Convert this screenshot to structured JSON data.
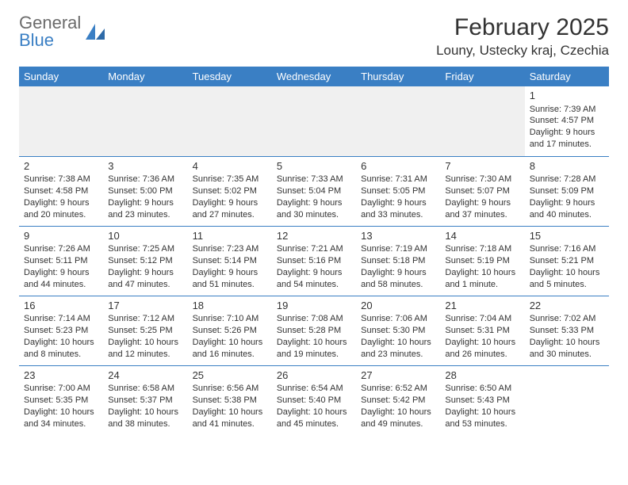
{
  "logo": {
    "word1": "General",
    "word2": "Blue"
  },
  "header": {
    "month_title": "February 2025",
    "location": "Louny, Ustecky kraj, Czechia"
  },
  "colors": {
    "accent": "#3a7fc4",
    "text": "#333333",
    "logo_gray": "#6b6b6b",
    "blank_bg": "#f0f0f0",
    "background": "#ffffff"
  },
  "weekdays": [
    "Sunday",
    "Monday",
    "Tuesday",
    "Wednesday",
    "Thursday",
    "Friday",
    "Saturday"
  ],
  "weeks": [
    [
      null,
      null,
      null,
      null,
      null,
      null,
      {
        "n": "1",
        "sr": "Sunrise: 7:39 AM",
        "ss": "Sunset: 4:57 PM",
        "d1": "Daylight: 9 hours",
        "d2": "and 17 minutes."
      }
    ],
    [
      {
        "n": "2",
        "sr": "Sunrise: 7:38 AM",
        "ss": "Sunset: 4:58 PM",
        "d1": "Daylight: 9 hours",
        "d2": "and 20 minutes."
      },
      {
        "n": "3",
        "sr": "Sunrise: 7:36 AM",
        "ss": "Sunset: 5:00 PM",
        "d1": "Daylight: 9 hours",
        "d2": "and 23 minutes."
      },
      {
        "n": "4",
        "sr": "Sunrise: 7:35 AM",
        "ss": "Sunset: 5:02 PM",
        "d1": "Daylight: 9 hours",
        "d2": "and 27 minutes."
      },
      {
        "n": "5",
        "sr": "Sunrise: 7:33 AM",
        "ss": "Sunset: 5:04 PM",
        "d1": "Daylight: 9 hours",
        "d2": "and 30 minutes."
      },
      {
        "n": "6",
        "sr": "Sunrise: 7:31 AM",
        "ss": "Sunset: 5:05 PM",
        "d1": "Daylight: 9 hours",
        "d2": "and 33 minutes."
      },
      {
        "n": "7",
        "sr": "Sunrise: 7:30 AM",
        "ss": "Sunset: 5:07 PM",
        "d1": "Daylight: 9 hours",
        "d2": "and 37 minutes."
      },
      {
        "n": "8",
        "sr": "Sunrise: 7:28 AM",
        "ss": "Sunset: 5:09 PM",
        "d1": "Daylight: 9 hours",
        "d2": "and 40 minutes."
      }
    ],
    [
      {
        "n": "9",
        "sr": "Sunrise: 7:26 AM",
        "ss": "Sunset: 5:11 PM",
        "d1": "Daylight: 9 hours",
        "d2": "and 44 minutes."
      },
      {
        "n": "10",
        "sr": "Sunrise: 7:25 AM",
        "ss": "Sunset: 5:12 PM",
        "d1": "Daylight: 9 hours",
        "d2": "and 47 minutes."
      },
      {
        "n": "11",
        "sr": "Sunrise: 7:23 AM",
        "ss": "Sunset: 5:14 PM",
        "d1": "Daylight: 9 hours",
        "d2": "and 51 minutes."
      },
      {
        "n": "12",
        "sr": "Sunrise: 7:21 AM",
        "ss": "Sunset: 5:16 PM",
        "d1": "Daylight: 9 hours",
        "d2": "and 54 minutes."
      },
      {
        "n": "13",
        "sr": "Sunrise: 7:19 AM",
        "ss": "Sunset: 5:18 PM",
        "d1": "Daylight: 9 hours",
        "d2": "and 58 minutes."
      },
      {
        "n": "14",
        "sr": "Sunrise: 7:18 AM",
        "ss": "Sunset: 5:19 PM",
        "d1": "Daylight: 10 hours",
        "d2": "and 1 minute."
      },
      {
        "n": "15",
        "sr": "Sunrise: 7:16 AM",
        "ss": "Sunset: 5:21 PM",
        "d1": "Daylight: 10 hours",
        "d2": "and 5 minutes."
      }
    ],
    [
      {
        "n": "16",
        "sr": "Sunrise: 7:14 AM",
        "ss": "Sunset: 5:23 PM",
        "d1": "Daylight: 10 hours",
        "d2": "and 8 minutes."
      },
      {
        "n": "17",
        "sr": "Sunrise: 7:12 AM",
        "ss": "Sunset: 5:25 PM",
        "d1": "Daylight: 10 hours",
        "d2": "and 12 minutes."
      },
      {
        "n": "18",
        "sr": "Sunrise: 7:10 AM",
        "ss": "Sunset: 5:26 PM",
        "d1": "Daylight: 10 hours",
        "d2": "and 16 minutes."
      },
      {
        "n": "19",
        "sr": "Sunrise: 7:08 AM",
        "ss": "Sunset: 5:28 PM",
        "d1": "Daylight: 10 hours",
        "d2": "and 19 minutes."
      },
      {
        "n": "20",
        "sr": "Sunrise: 7:06 AM",
        "ss": "Sunset: 5:30 PM",
        "d1": "Daylight: 10 hours",
        "d2": "and 23 minutes."
      },
      {
        "n": "21",
        "sr": "Sunrise: 7:04 AM",
        "ss": "Sunset: 5:31 PM",
        "d1": "Daylight: 10 hours",
        "d2": "and 26 minutes."
      },
      {
        "n": "22",
        "sr": "Sunrise: 7:02 AM",
        "ss": "Sunset: 5:33 PM",
        "d1": "Daylight: 10 hours",
        "d2": "and 30 minutes."
      }
    ],
    [
      {
        "n": "23",
        "sr": "Sunrise: 7:00 AM",
        "ss": "Sunset: 5:35 PM",
        "d1": "Daylight: 10 hours",
        "d2": "and 34 minutes."
      },
      {
        "n": "24",
        "sr": "Sunrise: 6:58 AM",
        "ss": "Sunset: 5:37 PM",
        "d1": "Daylight: 10 hours",
        "d2": "and 38 minutes."
      },
      {
        "n": "25",
        "sr": "Sunrise: 6:56 AM",
        "ss": "Sunset: 5:38 PM",
        "d1": "Daylight: 10 hours",
        "d2": "and 41 minutes."
      },
      {
        "n": "26",
        "sr": "Sunrise: 6:54 AM",
        "ss": "Sunset: 5:40 PM",
        "d1": "Daylight: 10 hours",
        "d2": "and 45 minutes."
      },
      {
        "n": "27",
        "sr": "Sunrise: 6:52 AM",
        "ss": "Sunset: 5:42 PM",
        "d1": "Daylight: 10 hours",
        "d2": "and 49 minutes."
      },
      {
        "n": "28",
        "sr": "Sunrise: 6:50 AM",
        "ss": "Sunset: 5:43 PM",
        "d1": "Daylight: 10 hours",
        "d2": "and 53 minutes."
      },
      null
    ]
  ]
}
